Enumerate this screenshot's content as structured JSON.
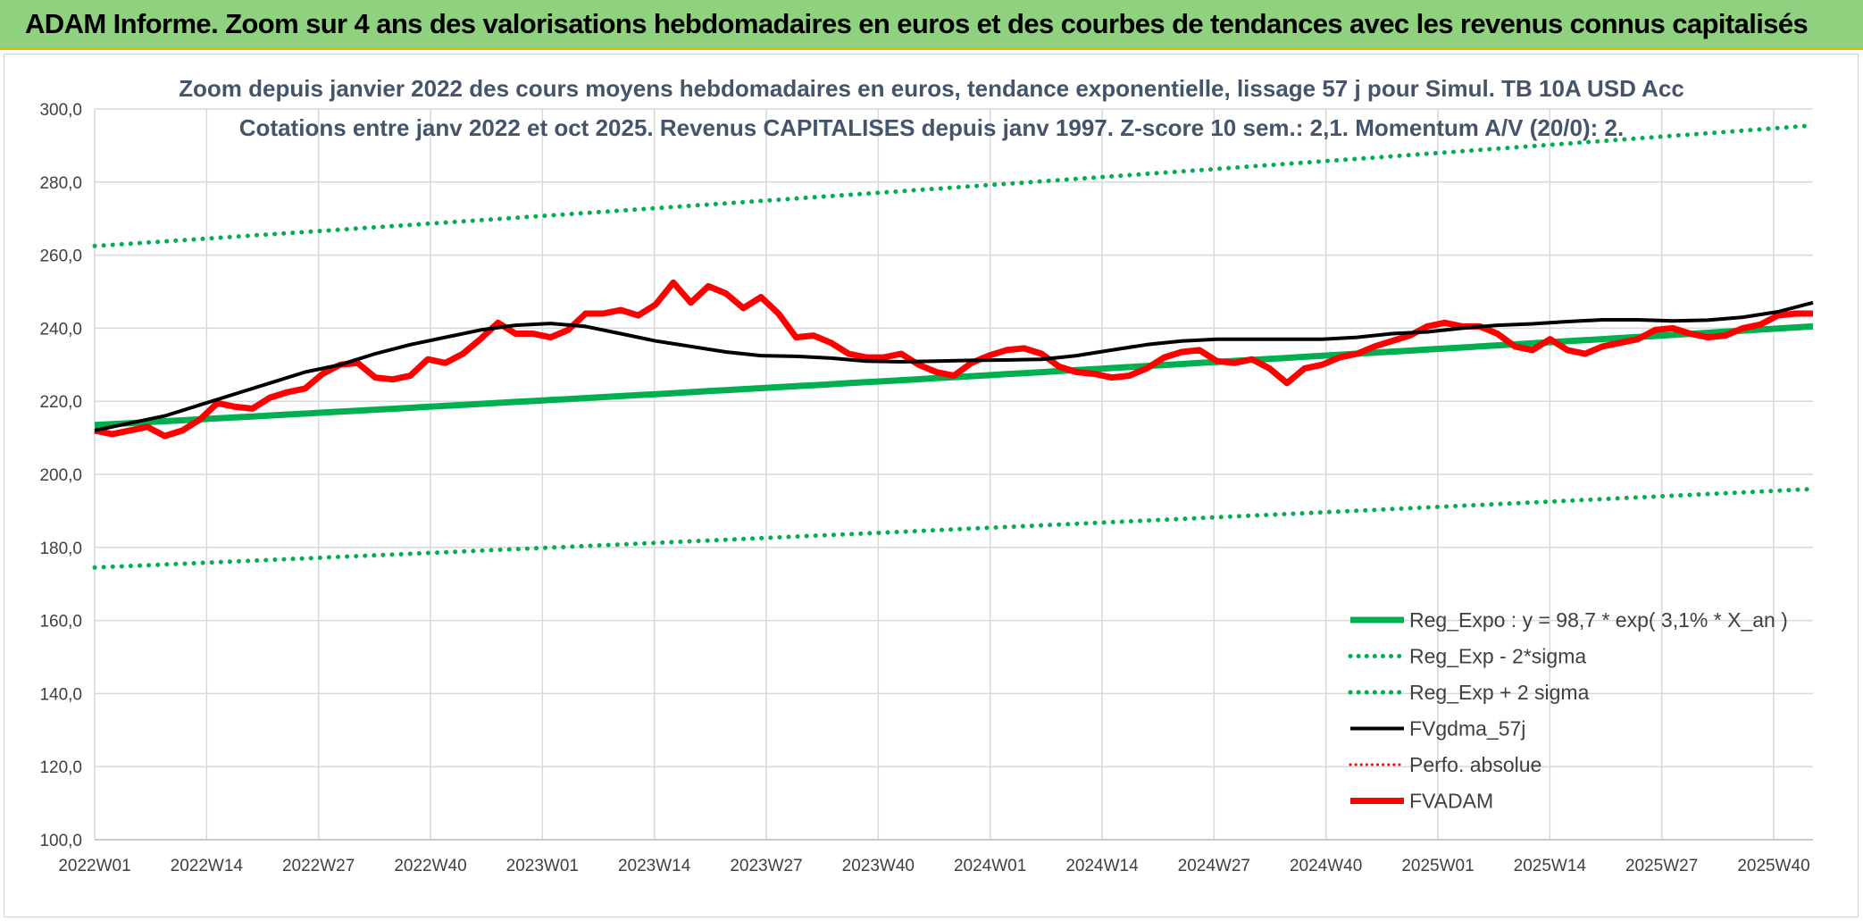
{
  "banner": {
    "title": "ADAM Informe. Zoom sur 4 ans des valorisations hebdomadaires en euros et des courbes de tendances avec les revenus connus capitalisés"
  },
  "chart_data": {
    "type": "line",
    "subtitle_line1": "Zoom depuis janvier 2022 des cours moyens hebdomadaires en euros, tendance exponentielle, lissage 57 j pour Simul. TB 10A USD Acc",
    "subtitle_line2": "Cotations entre janv 2022 et oct 2025. Revenus CAPITALISES depuis janv 1997. Z-score 10 sem.: 2,1. Momentum A/V (20/0): 2.",
    "ylim": [
      100,
      300
    ],
    "y_ticks": [
      "100,0",
      "120,0",
      "140,0",
      "160,0",
      "180,0",
      "200,0",
      "220,0",
      "240,0",
      "260,0",
      "280,0",
      "300,0"
    ],
    "x_weeks": 196,
    "x_tick_labels": [
      "2022W01",
      "2022W14",
      "2022W27",
      "2022W40",
      "2023W01",
      "2023W14",
      "2023W27",
      "2023W40",
      "2024W01",
      "2024W14",
      "2024W27",
      "2024W40",
      "2025W01",
      "2025W14",
      "2025W27",
      "2025W40"
    ],
    "grid": true,
    "legend_position": "bottom-right",
    "colors": {
      "reg_expo": "#00b050",
      "bands": "#00b050",
      "fvgdma": "#000000",
      "perfo": "#ff0000",
      "fvadam": "#ff0000",
      "grid": "#d9d9d9"
    },
    "series": [
      {
        "name": "Reg_Expo : y = 98,7 * exp( 3,1% *  X_an )",
        "style": "solid-thick",
        "start": 213.5,
        "end": 240.5
      },
      {
        "name": "Reg_Exp - 2*sigma",
        "style": "dotted",
        "start": 174.5,
        "end": 196.0
      },
      {
        "name": "Reg_Exp + 2 sigma",
        "style": "dotted",
        "start": 262.5,
        "end": 295.5
      },
      {
        "name": "FVgdma_57j",
        "style": "solid",
        "points": [
          [
            0,
            212
          ],
          [
            4,
            214
          ],
          [
            8,
            216
          ],
          [
            12,
            219
          ],
          [
            16,
            222
          ],
          [
            20,
            225
          ],
          [
            24,
            228
          ],
          [
            28,
            230
          ],
          [
            32,
            233
          ],
          [
            36,
            235.5
          ],
          [
            40,
            237.5
          ],
          [
            44,
            239.5
          ],
          [
            48,
            240.8
          ],
          [
            52,
            241.3
          ],
          [
            56,
            240.5
          ],
          [
            60,
            238.5
          ],
          [
            64,
            236.5
          ],
          [
            68,
            235
          ],
          [
            72,
            233.5
          ],
          [
            76,
            232.5
          ],
          [
            80,
            232.3
          ],
          [
            84,
            231.8
          ],
          [
            88,
            231
          ],
          [
            92,
            230.8
          ],
          [
            96,
            231
          ],
          [
            100,
            231.2
          ],
          [
            104,
            231.3
          ],
          [
            108,
            231.5
          ],
          [
            112,
            232.5
          ],
          [
            116,
            234
          ],
          [
            120,
            235.5
          ],
          [
            124,
            236.5
          ],
          [
            128,
            237
          ],
          [
            132,
            237
          ],
          [
            136,
            237
          ],
          [
            140,
            237
          ],
          [
            144,
            237.5
          ],
          [
            148,
            238.5
          ],
          [
            152,
            239
          ],
          [
            156,
            240
          ],
          [
            160,
            240.8
          ],
          [
            164,
            241.2
          ],
          [
            168,
            241.8
          ],
          [
            172,
            242.3
          ],
          [
            176,
            242.3
          ],
          [
            180,
            242
          ],
          [
            184,
            242.2
          ],
          [
            188,
            243
          ],
          [
            192,
            244.5
          ],
          [
            196,
            247
          ]
        ]
      },
      {
        "name": "Perfo. absolue",
        "style": "dotted",
        "points": []
      },
      {
        "name": "FVADAM",
        "style": "solid-thick",
        "points": [
          [
            0,
            212
          ],
          [
            2,
            211
          ],
          [
            4,
            212
          ],
          [
            6,
            213
          ],
          [
            8,
            210.5
          ],
          [
            10,
            212
          ],
          [
            12,
            215
          ],
          [
            14,
            219.5
          ],
          [
            16,
            218.5
          ],
          [
            18,
            218
          ],
          [
            20,
            221
          ],
          [
            22,
            222.5
          ],
          [
            24,
            223.5
          ],
          [
            26,
            227.5
          ],
          [
            28,
            230
          ],
          [
            30,
            230.5
          ],
          [
            32,
            226.5
          ],
          [
            34,
            226
          ],
          [
            36,
            227
          ],
          [
            38,
            231.5
          ],
          [
            40,
            230.5
          ],
          [
            42,
            233
          ],
          [
            44,
            237
          ],
          [
            46,
            241.5
          ],
          [
            48,
            238.5
          ],
          [
            50,
            238.5
          ],
          [
            52,
            237.5
          ],
          [
            54,
            239.5
          ],
          [
            56,
            244
          ],
          [
            58,
            244
          ],
          [
            60,
            245
          ],
          [
            62,
            243.5
          ],
          [
            64,
            246.5
          ],
          [
            66,
            252.5
          ],
          [
            68,
            247
          ],
          [
            70,
            251.5
          ],
          [
            72,
            249.5
          ],
          [
            74,
            245.5
          ],
          [
            76,
            248.5
          ],
          [
            78,
            244
          ],
          [
            80,
            237.5
          ],
          [
            82,
            238
          ],
          [
            84,
            236
          ],
          [
            86,
            233
          ],
          [
            88,
            232
          ],
          [
            90,
            232
          ],
          [
            92,
            233
          ],
          [
            94,
            230
          ],
          [
            96,
            228
          ],
          [
            98,
            227
          ],
          [
            100,
            230.5
          ],
          [
            102,
            232.5
          ],
          [
            104,
            234
          ],
          [
            106,
            234.5
          ],
          [
            108,
            233
          ],
          [
            110,
            229.5
          ],
          [
            112,
            228
          ],
          [
            114,
            227.5
          ],
          [
            116,
            226.5
          ],
          [
            118,
            227
          ],
          [
            120,
            229
          ],
          [
            122,
            232
          ],
          [
            124,
            233.5
          ],
          [
            126,
            234
          ],
          [
            128,
            231
          ],
          [
            130,
            230.5
          ],
          [
            132,
            231.5
          ],
          [
            134,
            229
          ],
          [
            136,
            225
          ],
          [
            138,
            229
          ],
          [
            140,
            230
          ],
          [
            142,
            232
          ],
          [
            144,
            233
          ],
          [
            146,
            235
          ],
          [
            148,
            236.5
          ],
          [
            150,
            238
          ],
          [
            152,
            240.5
          ],
          [
            154,
            241.5
          ],
          [
            156,
            240.5
          ]
        ]
      }
    ]
  },
  "fvadam_tail": [
    [
      156,
      240.5
    ],
    [
      158,
      240.5
    ],
    [
      160,
      238.5
    ],
    [
      162,
      235
    ],
    [
      164,
      234
    ],
    [
      166,
      237
    ],
    [
      168,
      234
    ],
    [
      170,
      233
    ],
    [
      172,
      235
    ],
    [
      174,
      236
    ],
    [
      176,
      237
    ],
    [
      178,
      239.5
    ],
    [
      180,
      240
    ],
    [
      182,
      238.5
    ],
    [
      184,
      237.5
    ],
    [
      186,
      238
    ],
    [
      188,
      240
    ],
    [
      190,
      241
    ],
    [
      192,
      243.5
    ],
    [
      194,
      244
    ],
    [
      196,
      244
    ]
  ]
}
